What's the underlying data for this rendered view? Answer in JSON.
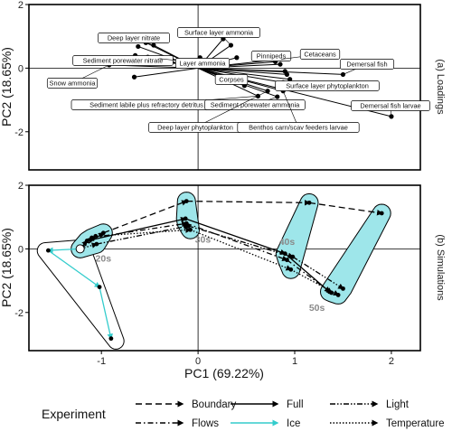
{
  "xlabel": "PC1 (69.22%)",
  "legend": {
    "title": "Experiment",
    "entries": [
      {
        "name": "Boundary",
        "dash": "7,4",
        "color": "#000000"
      },
      {
        "name": "Flows",
        "dash": "6,3,1.5,3",
        "color": "#000000"
      },
      {
        "name": "Full",
        "dash": "",
        "color": "#000000"
      },
      {
        "name": "Ice",
        "dash": "",
        "color": "#33cccc"
      },
      {
        "name": "Light",
        "dash": "6,2,1.5,2,1.5,2",
        "color": "#000000"
      },
      {
        "name": "Temperature",
        "dash": "1.5,2",
        "color": "#000000"
      }
    ]
  },
  "chart_data": [
    {
      "type": "scatter",
      "panel": "loadings",
      "strip": "(a) Loadings",
      "ylabel": "PC2 (18.65%)",
      "xlim": [
        -1.75,
        2.3
      ],
      "ylim": [
        -3.2,
        2.0
      ],
      "yticks": [
        -2,
        0,
        2
      ],
      "points": [
        {
          "label": "Snow ammonia",
          "x": -0.92,
          "y": 0.1
        },
        {
          "label": "Sediment porewater nitrate",
          "x": -0.52,
          "y": 0.35
        },
        {
          "label": "Deep layer nitrate",
          "x": -0.46,
          "y": 0.72
        },
        {
          "label": "Layer ammonia",
          "x": -0.4,
          "y": 0.3
        },
        {
          "label": "Surface layer ammonia",
          "x": 0.34,
          "y": 0.72
        },
        {
          "label": "",
          "x": -0.65,
          "y": 0.4
        },
        {
          "label": "",
          "x": -0.62,
          "y": 0.68
        },
        {
          "label": "",
          "x": -0.54,
          "y": 0.8
        },
        {
          "label": "",
          "x": -0.66,
          "y": -0.28
        },
        {
          "label": "",
          "x": -0.28,
          "y": 0.3
        },
        {
          "label": "",
          "x": 0.02,
          "y": 0.33
        },
        {
          "label": "",
          "x": 0.26,
          "y": 0.92
        },
        {
          "label": "",
          "x": 0.4,
          "y": 0.33
        },
        {
          "label": "Corpses",
          "x": 0.48,
          "y": -0.55
        },
        {
          "label": "Sediment labile plus refractory detritus",
          "x": 0.62,
          "y": -0.88
        },
        {
          "label": "Pinnipeds",
          "x": 0.8,
          "y": 0.2
        },
        {
          "label": "Cetaceans",
          "x": 0.86,
          "y": 0.28
        },
        {
          "label": "Surface layer phytoplankton",
          "x": 0.88,
          "y": -0.45
        },
        {
          "label": "Sediment porewater ammonia",
          "x": 0.82,
          "y": -0.9
        },
        {
          "label": "Deep layer phytoplankton",
          "x": 0.72,
          "y": -0.72
        },
        {
          "label": "Benthos carn/scav feeders larvae",
          "x": 0.88,
          "y": -0.72
        },
        {
          "label": "Demersal fish",
          "x": 1.5,
          "y": -0.2
        },
        {
          "label": "Demersal fish larvae",
          "x": 2.0,
          "y": -1.52
        },
        {
          "label": "",
          "x": 0.85,
          "y": 0.12
        },
        {
          "label": "",
          "x": 0.9,
          "y": -0.1
        },
        {
          "label": "",
          "x": 0.92,
          "y": -0.2
        },
        {
          "label": "",
          "x": 0.95,
          "y": -0.35
        }
      ]
    },
    {
      "type": "line",
      "panel": "simulations",
      "strip": "(b) Simulations",
      "ylabel": "PC2 (18.65%)",
      "xlim": [
        -1.75,
        2.3
      ],
      "ylim": [
        -3.2,
        2.0
      ],
      "xticks": [
        -1,
        0,
        1,
        2
      ],
      "yticks": [
        -2,
        0,
        2
      ],
      "origin": {
        "x": -1.22,
        "y": 0.0
      },
      "decades": [
        {
          "label": "20s",
          "x": -0.98,
          "y": -0.4
        },
        {
          "label": "30s",
          "x": 0.05,
          "y": 0.2
        },
        {
          "label": "40s",
          "x": 0.92,
          "y": 0.12
        },
        {
          "label": "50s",
          "x": 1.23,
          "y": -1.95
        }
      ],
      "series": [
        {
          "name": "Boundary",
          "points": [
            [
              -1.22,
              0
            ],
            [
              -0.98,
              0.5
            ],
            [
              -0.12,
              1.5
            ],
            [
              1.15,
              1.45
            ],
            [
              1.9,
              1.12
            ]
          ]
        },
        {
          "name": "Flows",
          "points": [
            [
              -1.22,
              0
            ],
            [
              -1.1,
              0.35
            ],
            [
              -0.12,
              0.8
            ],
            [
              0.92,
              -0.35
            ],
            [
              1.38,
              -1.38
            ]
          ]
        },
        {
          "name": "Full",
          "points": [
            [
              -1.22,
              0
            ],
            [
              -1.15,
              0.25
            ],
            [
              -0.13,
              0.95
            ],
            [
              0.9,
              -0.15
            ],
            [
              1.36,
              -1.35
            ]
          ]
        },
        {
          "name": "Ice",
          "points": [
            [
              -1.22,
              0
            ],
            [
              -1.55,
              -0.05
            ],
            [
              -1.02,
              -1.2
            ],
            [
              -0.9,
              -2.82
            ]
          ]
        },
        {
          "name": "Light",
          "points": [
            [
              -1.22,
              0
            ],
            [
              -1.05,
              0.15
            ],
            [
              -0.1,
              0.72
            ],
            [
              0.98,
              -0.25
            ],
            [
              1.5,
              -1.25
            ]
          ]
        },
        {
          "name": "Temperature",
          "points": [
            [
              -1.22,
              0
            ],
            [
              -1.06,
              0.4
            ],
            [
              -0.08,
              0.6
            ],
            [
              0.96,
              -0.65
            ],
            [
              1.45,
              -1.45
            ]
          ]
        }
      ]
    }
  ]
}
